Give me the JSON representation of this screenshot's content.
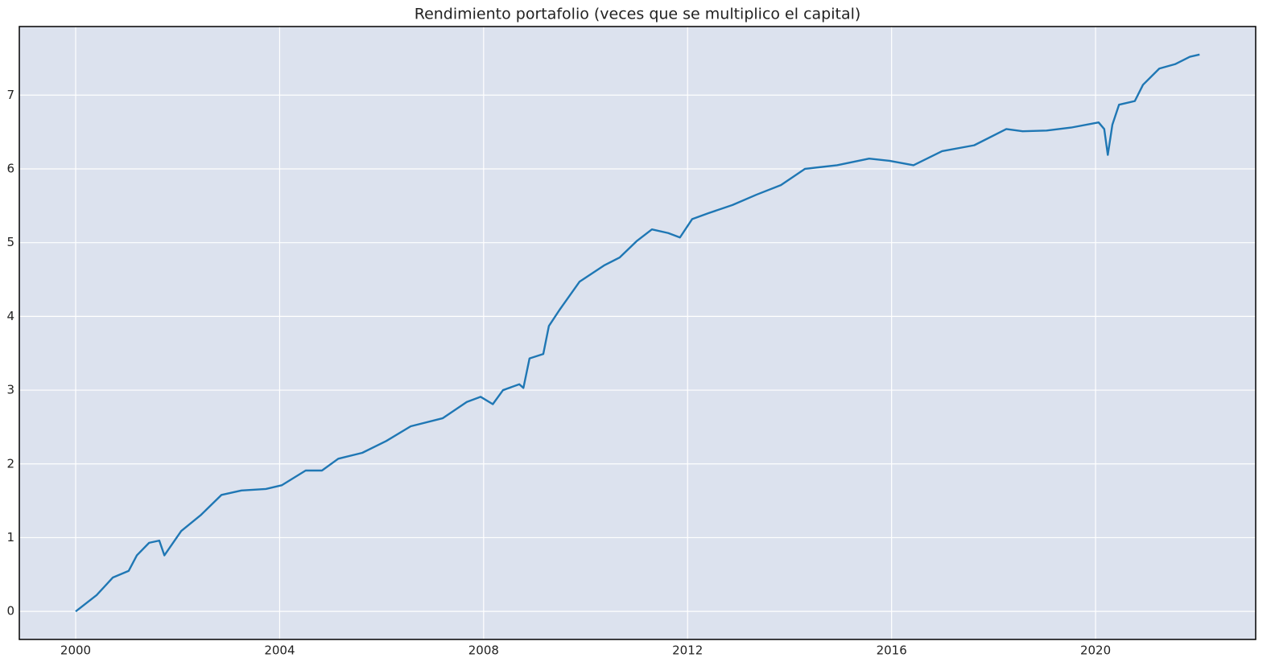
{
  "chart_data": {
    "type": "line",
    "title": "Rendimiento portafolio (veces que se multiplico el capital)",
    "x": [
      2000,
      2000.41,
      2000.73,
      2001.04,
      2001.2,
      2001.44,
      2001.64,
      2001.74,
      2002.07,
      2002.46,
      2002.86,
      2003.25,
      2003.73,
      2004.04,
      2004.51,
      2004.83,
      2005.15,
      2005.62,
      2006.09,
      2006.57,
      2007.2,
      2007.67,
      2007.94,
      2008.18,
      2008.38,
      2008.7,
      2008.78,
      2008.9,
      2009.17,
      2009.28,
      2009.49,
      2009.88,
      2010.36,
      2010.67,
      2011.0,
      2011.3,
      2011.62,
      2011.85,
      2012.09,
      2012.41,
      2012.88,
      2013.35,
      2013.83,
      2014.3,
      2014.93,
      2015.56,
      2015.96,
      2016.43,
      2016.99,
      2017.62,
      2018.25,
      2018.57,
      2019.04,
      2019.52,
      2020.06,
      2020.17,
      2020.24,
      2020.33,
      2020.46,
      2020.77,
      2020.93,
      2021.25,
      2021.56,
      2021.85,
      2022.04
    ],
    "series": [
      {
        "color": "#1f77b4",
        "values": [
          0,
          0.22,
          0.46,
          0.55,
          0.76,
          0.93,
          0.96,
          0.76,
          1.09,
          1.31,
          1.58,
          1.64,
          1.66,
          1.71,
          1.91,
          1.91,
          2.07,
          2.15,
          2.31,
          2.51,
          2.62,
          2.84,
          2.91,
          2.81,
          3.0,
          3.08,
          3.03,
          3.43,
          3.49,
          3.87,
          4.09,
          4.47,
          4.69,
          4.8,
          5.02,
          5.18,
          5.13,
          5.07,
          5.32,
          5.4,
          5.51,
          5.65,
          5.78,
          6.0,
          6.05,
          6.14,
          6.11,
          6.05,
          6.24,
          6.32,
          6.54,
          6.51,
          6.52,
          6.56,
          6.63,
          6.54,
          6.19,
          6.6,
          6.87,
          6.92,
          7.14,
          7.36,
          7.42,
          7.52,
          7.55
        ]
      }
    ],
    "xlim": [
      1998.895,
      2023.14
    ],
    "xticks": [
      2000,
      2004,
      2008,
      2012,
      2016,
      2020
    ],
    "ylim": [
      -0.38,
      7.93
    ],
    "yticks": [
      0,
      1,
      2,
      3,
      4,
      5,
      6,
      7
    ],
    "grid": true
  }
}
